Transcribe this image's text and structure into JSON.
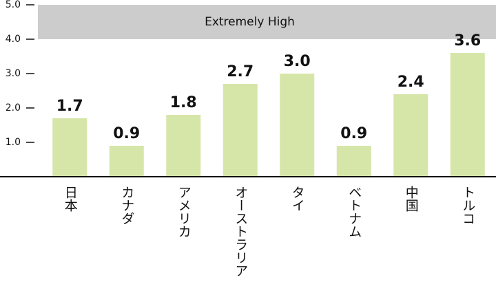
{
  "chart_data": {
    "type": "bar",
    "categories": [
      "日本",
      "カナダ",
      "アメリカ",
      "オーストラリア",
      "タイ",
      "ベトナム",
      "中国",
      "トルコ"
    ],
    "values": [
      1.7,
      0.9,
      1.8,
      2.7,
      3.0,
      0.9,
      2.4,
      3.6
    ],
    "value_labels": [
      "1.7",
      "0.9",
      "1.8",
      "2.7",
      "3.0",
      "0.9",
      "2.4",
      "3.6"
    ],
    "color": "#d6e6a9",
    "ylim": [
      0,
      5
    ],
    "yticks": [
      {
        "value": 1,
        "label": "1.0"
      },
      {
        "value": 2,
        "label": "2.0"
      },
      {
        "value": 3,
        "label": "3.0"
      },
      {
        "value": 4,
        "label": "4.0"
      },
      {
        "value": 5,
        "label": "5.0"
      }
    ],
    "bands": [
      {
        "from": 4,
        "to": 5,
        "label": "Extremely High",
        "color": "#cccccc"
      }
    ]
  }
}
